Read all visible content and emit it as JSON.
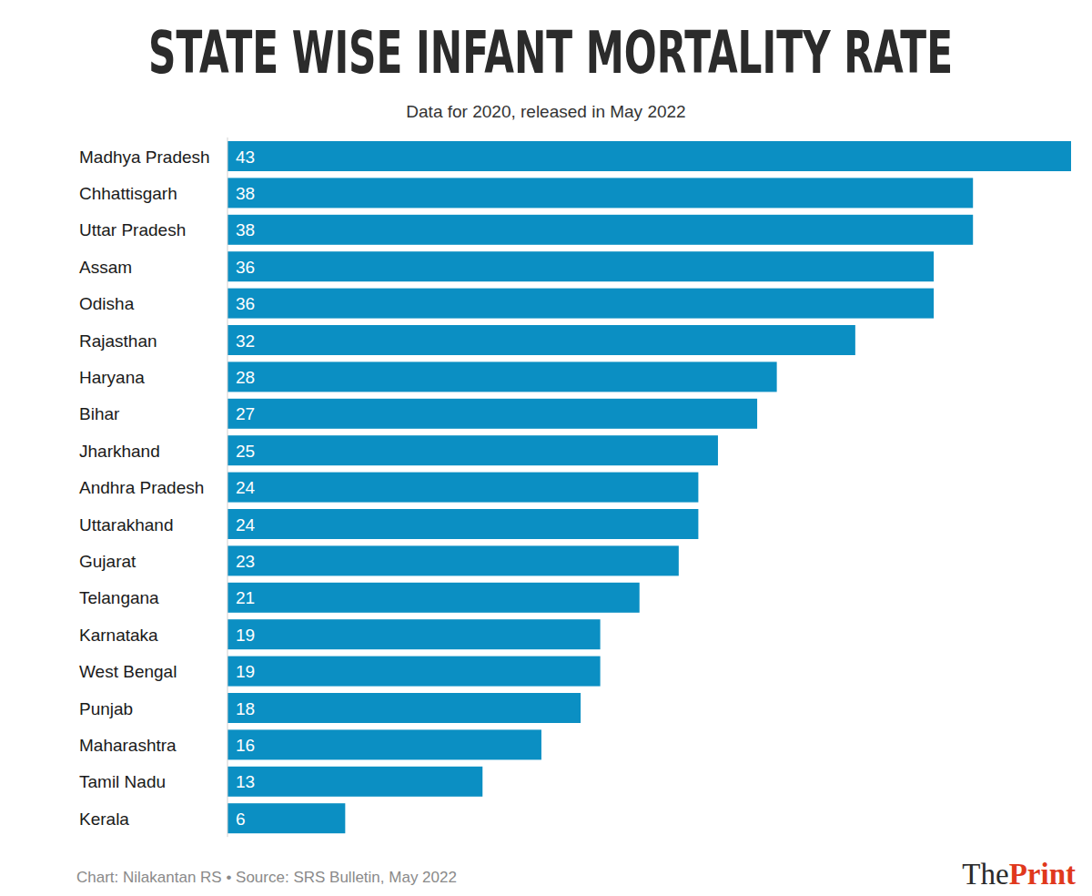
{
  "chart_data": {
    "type": "bar",
    "orientation": "horizontal",
    "title": "STATE WISE INFANT MORTALITY RATE",
    "subtitle": "Data for 2020, released in May 2022",
    "caption": "Chart: Nilakantan RS • Source: SRS Bulletin, May 2022",
    "logo": [
      "The",
      "Print"
    ],
    "categories": [
      "Madhya Pradesh",
      "Chhattisgarh",
      "Uttar Pradesh",
      "Assam",
      "Odisha",
      "Rajasthan",
      "Haryana",
      "Bihar",
      "Jharkhand",
      "Andhra Pradesh",
      "Uttarakhand",
      "Gujarat",
      "Telangana",
      "Karnataka",
      "West Bengal",
      "Punjab",
      "Maharashtra",
      "Tamil Nadu",
      "Kerala"
    ],
    "values": [
      43,
      38,
      38,
      36,
      36,
      32,
      28,
      27,
      25,
      24,
      24,
      23,
      21,
      19,
      19,
      18,
      16,
      13,
      6
    ],
    "color": "#0b8fc3",
    "xlim": [
      0,
      43
    ],
    "grid": false,
    "data_labels": true,
    "tick_labels": "y"
  }
}
